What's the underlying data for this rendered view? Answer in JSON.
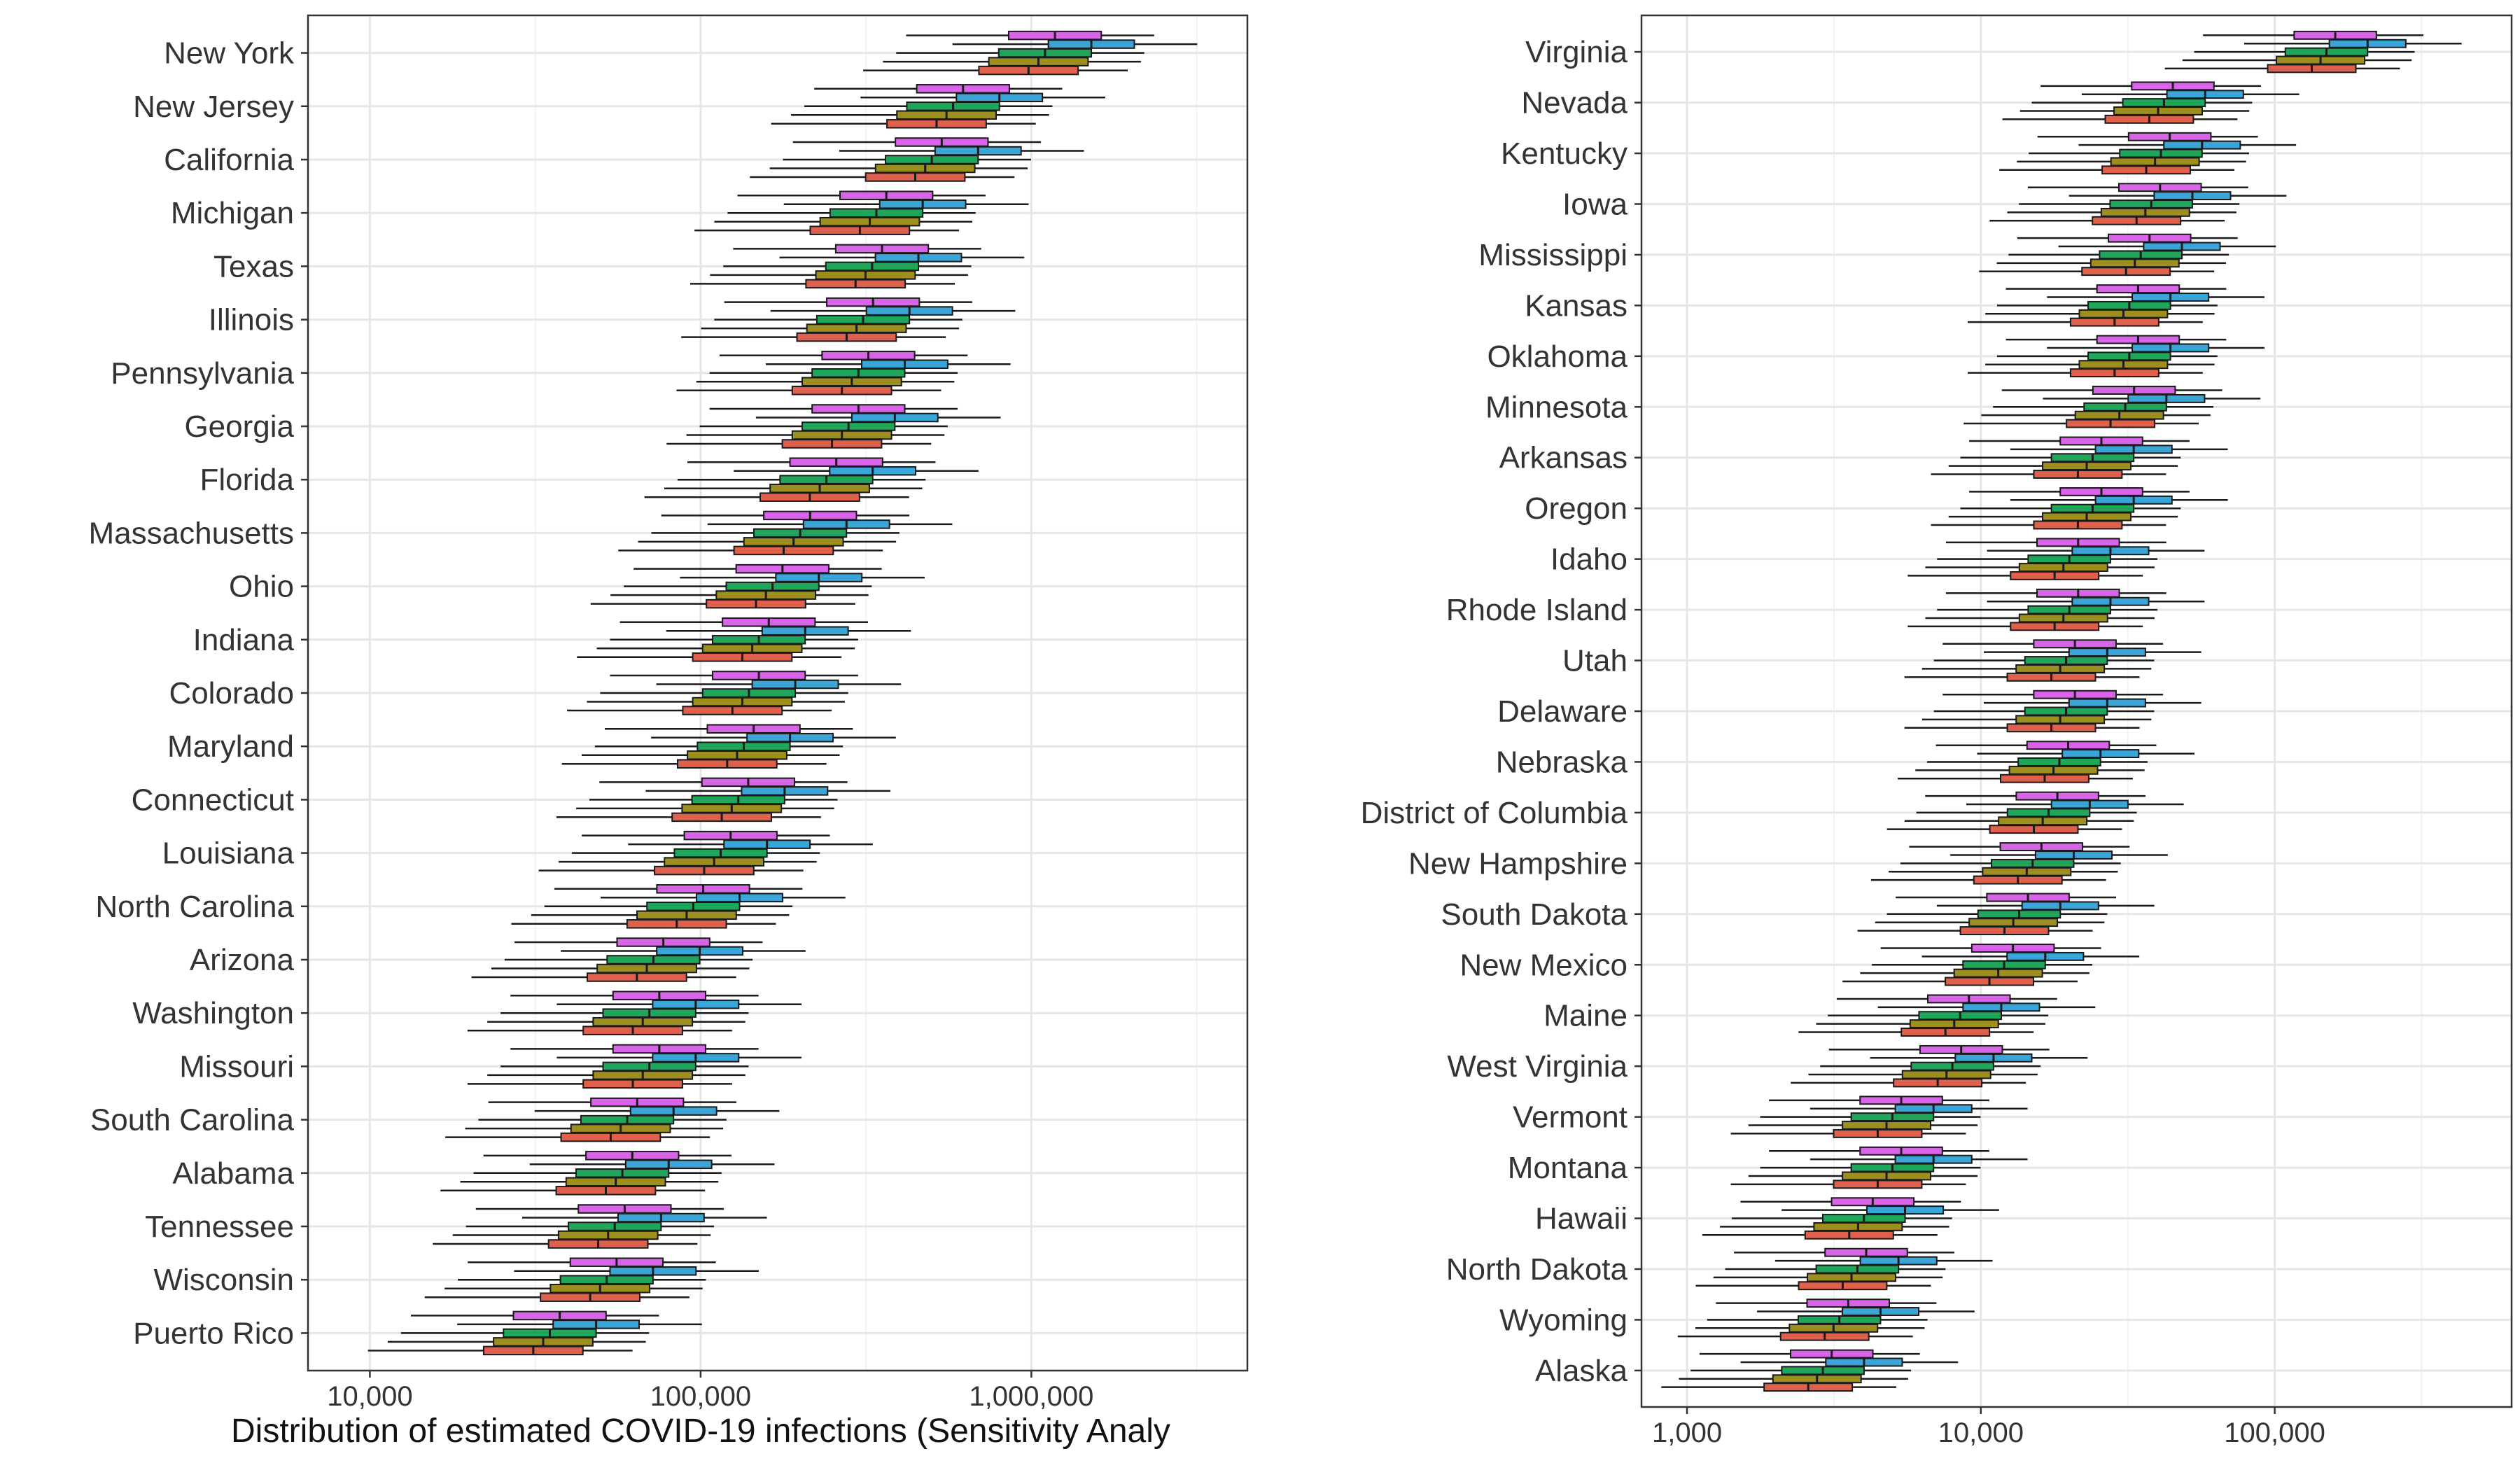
{
  "chart_data": [
    {
      "type": "boxplot",
      "xlabel": "Distribution of estimated COVID-19 infections (Sensitivity Analy",
      "x_scale": "log10",
      "xlim": [
        6500,
        4500000
      ],
      "x_ticks": [
        10000,
        100000,
        1000000
      ],
      "x_tick_labels": [
        "10,000",
        "100,000",
        "1,000,000"
      ],
      "grid": true,
      "boxes_per_category": 5,
      "series_colors": [
        "#D864E8",
        "#3AA5D6",
        "#1FA65B",
        "#9C8E1F",
        "#E0604E"
      ],
      "categories": [
        "New York",
        "New Jersey",
        "California",
        "Michigan",
        "Texas",
        "Illinois",
        "Pennsylvania",
        "Georgia",
        "Florida",
        "Massachusetts",
        "Ohio",
        "Indiana",
        "Colorado",
        "Maryland",
        "Connecticut",
        "Louisiana",
        "North Carolina",
        "Arizona",
        "Washington",
        "Missouri",
        "South Carolina",
        "Alabama",
        "Tennessee",
        "Wisconsin",
        "Puerto Rico"
      ],
      "medians": [
        1100000,
        580000,
        500000,
        340000,
        330000,
        310000,
        300000,
        280000,
        240000,
        200000,
        165000,
        150000,
        140000,
        135000,
        130000,
        115000,
        95000,
        72000,
        70000,
        70000,
        60000,
        58000,
        55000,
        52000,
        35000
      ]
    },
    {
      "type": "boxplot",
      "xlabel": "",
      "x_scale": "log10",
      "xlim": [
        700,
        640000
      ],
      "x_ticks": [
        1000,
        10000,
        100000
      ],
      "x_tick_labels": [
        "1,000",
        "10,000",
        "100,000"
      ],
      "grid": true,
      "boxes_per_category": 5,
      "series_colors": [
        "#D864E8",
        "#3AA5D6",
        "#1FA65B",
        "#9C8E1F",
        "#E0604E"
      ],
      "categories": [
        "Virginia",
        "Nevada",
        "Kentucky",
        "Iowa",
        "Mississippi",
        "Kansas",
        "Oklahoma",
        "Minnesota",
        "Arkansas",
        "Oregon",
        "Idaho",
        "Rhode Island",
        "Utah",
        "Delaware",
        "Nebraska",
        "District of Columbia",
        "New Hampshire",
        "South Dakota",
        "New Mexico",
        "Maine",
        "West Virginia",
        "Vermont",
        "Montana",
        "Hawaii",
        "North Dakota",
        "Wyoming",
        "Alaska"
      ],
      "medians": [
        150000,
        42000,
        41000,
        38000,
        35000,
        32000,
        32000,
        31000,
        24000,
        24000,
        20000,
        20000,
        19500,
        19500,
        18500,
        17000,
        15000,
        13500,
        12000,
        8500,
        8000,
        5000,
        5000,
        4000,
        3800,
        3300,
        2900
      ]
    }
  ]
}
